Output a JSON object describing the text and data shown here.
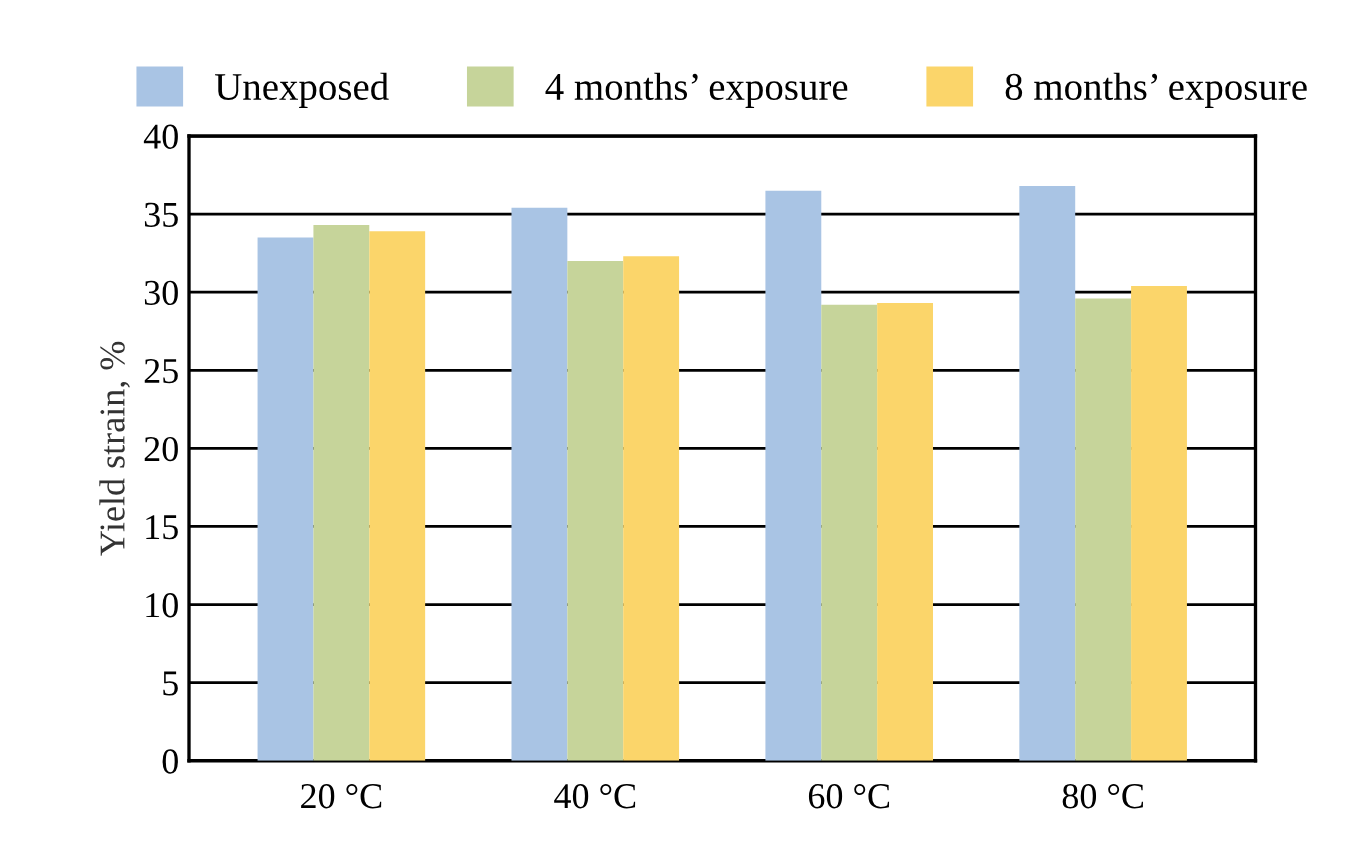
{
  "chart_data": {
    "type": "bar",
    "ylabel": "Yield strain, %",
    "categories": [
      "20 °C",
      "40 °C",
      "60 °C",
      "80 °C"
    ],
    "series": [
      {
        "name": "Unexposed",
        "color": "#a9c4e4",
        "values": [
          33.5,
          35.4,
          36.5,
          36.8
        ]
      },
      {
        "name": "4 months’ exposure",
        "color": "#c6d49a",
        "values": [
          34.3,
          32.0,
          29.2,
          29.6
        ]
      },
      {
        "name": "8 months’ exposure",
        "color": "#fbd56a",
        "values": [
          33.9,
          32.3,
          29.3,
          30.4
        ]
      }
    ],
    "ylim": [
      0,
      40
    ],
    "yticks": [
      0,
      5,
      10,
      15,
      20,
      25,
      30,
      35,
      40
    ],
    "grid": "y",
    "legend": "top"
  }
}
